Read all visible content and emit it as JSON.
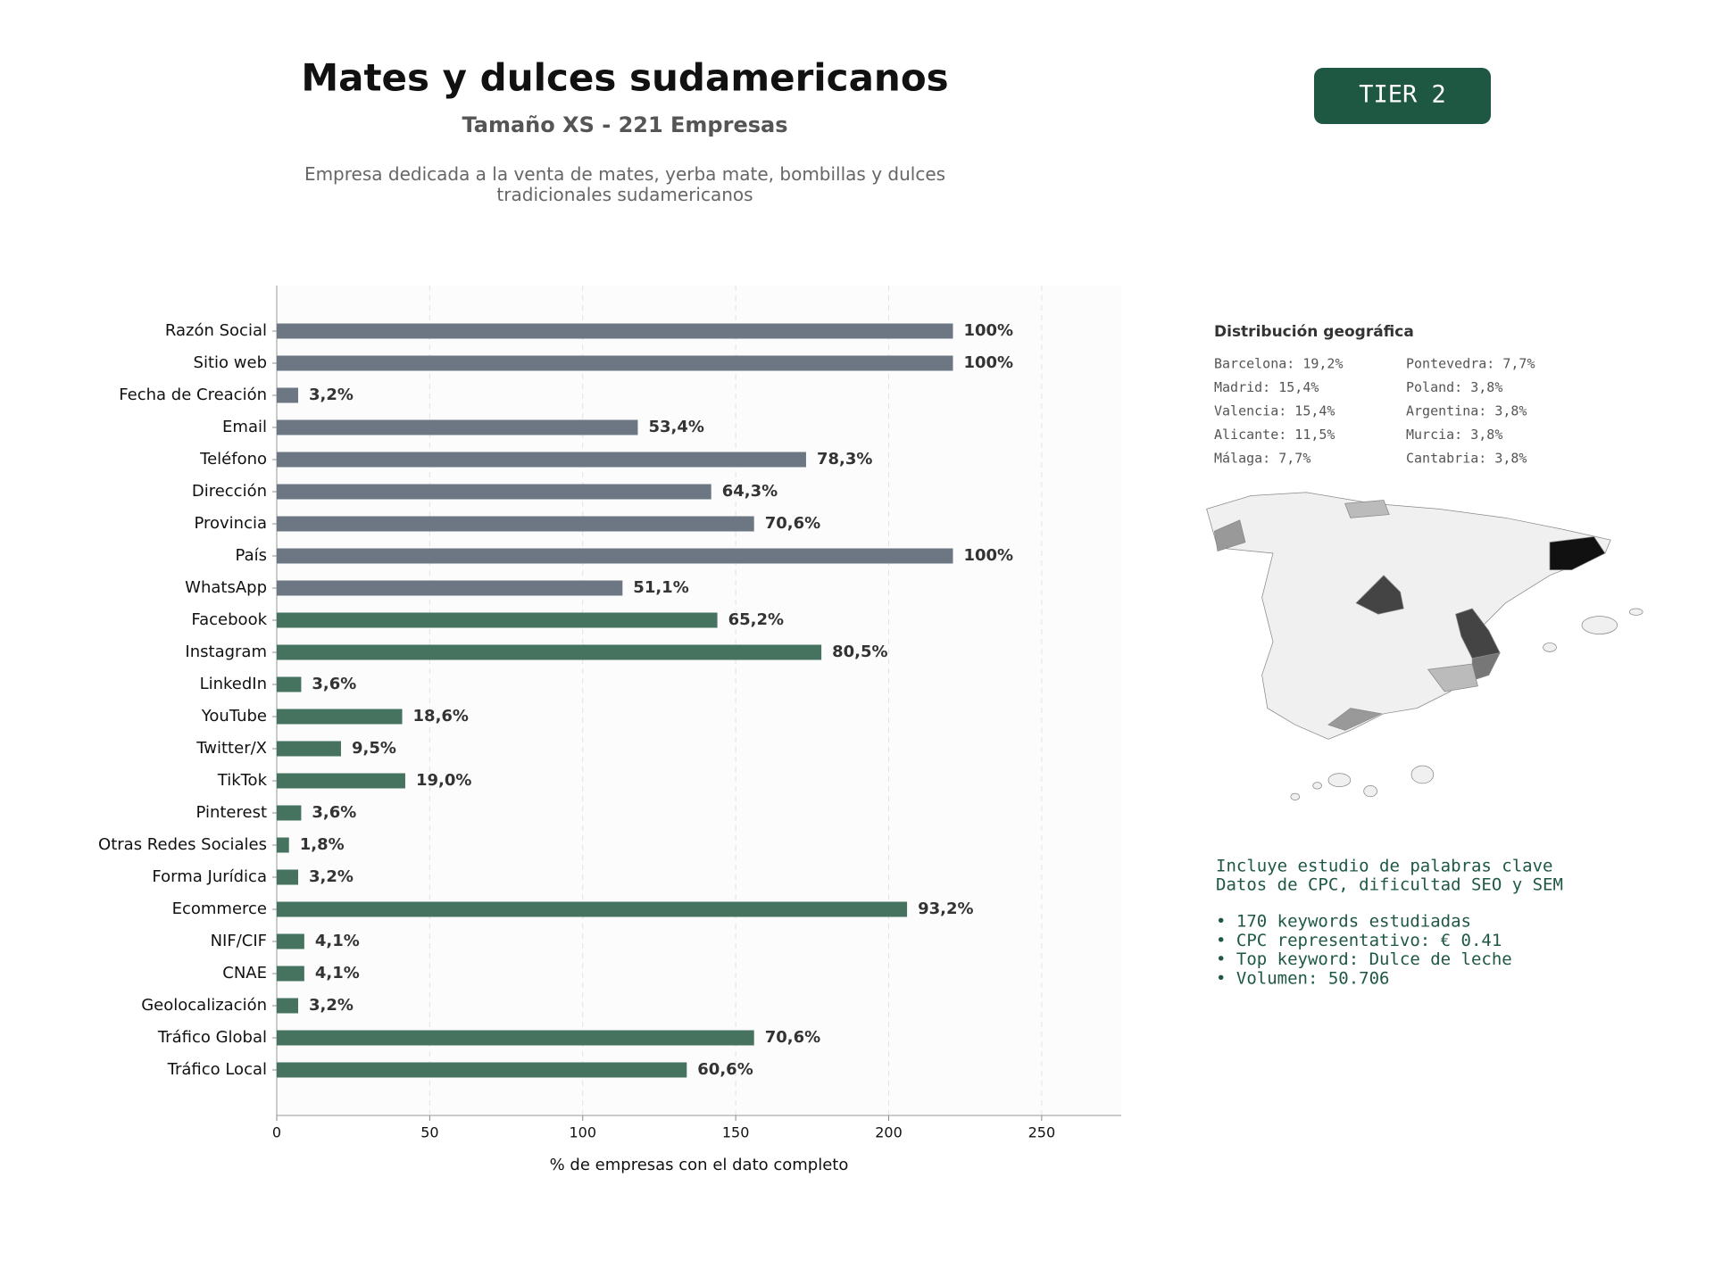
{
  "header": {
    "title": "Mates y dulces sudamericanos",
    "subtitle": "Tamaño XS - 221 Empresas",
    "description": "Empresa dedicada a la venta de mates, yerba mate, bombillas y dulces tradicionales sudamericanos"
  },
  "tier": "TIER 2",
  "geo": {
    "title": "Distribución geográfica",
    "items": [
      "Barcelona: 19,2%",
      "Madrid: 15,4%",
      "Valencia: 15,4%",
      "Alicante: 11,5%",
      "Málaga: 7,7%",
      "Pontevedra: 7,7%",
      "Poland: 3,8%",
      "Argentina: 3,8%",
      "Murcia: 3,8%",
      "Cantabria: 3,8%"
    ]
  },
  "keywords": {
    "lines": [
      "Incluye estudio de palabras clave",
      "Datos de CPC, dificultad SEO y SEM"
    ],
    "bullets": [
      "• 170 keywords estudiadas",
      "• CPC representativo: € 0.41",
      "• Top keyword: Dulce de leche",
      "• Volumen: 50.706"
    ]
  },
  "chart_data": {
    "type": "hbar",
    "xlabel": "% de empresas con el dato completo",
    "categories": [
      "Razón Social",
      "Sitio web",
      "Fecha de Creación",
      "Email",
      "Teléfono",
      "Dirección",
      "Provincia",
      "País",
      "WhatsApp",
      "Facebook",
      "Instagram",
      "LinkedIn",
      "YouTube",
      "Twitter/X",
      "TikTok",
      "Pinterest",
      "Otras Redes Sociales",
      "Forma Jurídica",
      "Ecommerce",
      "NIF/CIF",
      "CNAE",
      "Geolocalización",
      "Tráfico Global",
      "Tráfico Local"
    ],
    "values": [
      221,
      221,
      7,
      118,
      173,
      142,
      156,
      221,
      113,
      144,
      178,
      8,
      41,
      21,
      42,
      8,
      4,
      7,
      206,
      9,
      9,
      7,
      156,
      134
    ],
    "value_labels": [
      "100%",
      "100%",
      "3,2%",
      "53,4%",
      "78,3%",
      "64,3%",
      "70,6%",
      "100%",
      "51,1%",
      "65,2%",
      "80,5%",
      "3,6%",
      "18,6%",
      "9,5%",
      "19,0%",
      "3,6%",
      "1,8%",
      "3,2%",
      "93,2%",
      "4,1%",
      "4,1%",
      "3,2%",
      "70,6%",
      "60,6%"
    ],
    "colors": [
      "#6c7783",
      "#6c7783",
      "#6c7783",
      "#6c7783",
      "#6c7783",
      "#6c7783",
      "#6c7783",
      "#6c7783",
      "#6c7783",
      "#46735f",
      "#46735f",
      "#46735f",
      "#46735f",
      "#46735f",
      "#46735f",
      "#46735f",
      "#46735f",
      "#46735f",
      "#46735f",
      "#46735f",
      "#46735f",
      "#46735f",
      "#46735f",
      "#46735f"
    ],
    "xlim": [
      0,
      276
    ],
    "xticks": [
      0,
      50,
      100,
      150,
      200,
      250
    ],
    "grid": true
  }
}
